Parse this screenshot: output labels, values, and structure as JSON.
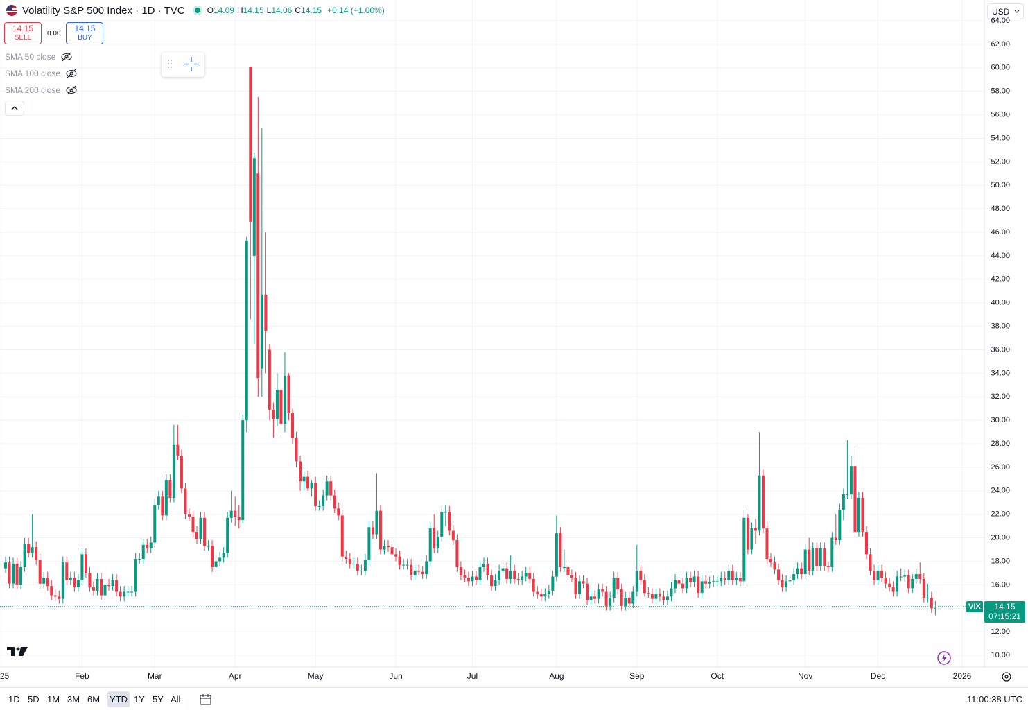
{
  "header": {
    "title": "Volatility S&P 500 Index · 1D · TVC",
    "ohlc": [
      {
        "label": "O",
        "value": "14.09"
      },
      {
        "label": "H",
        "value": "14.15"
      },
      {
        "label": "L",
        "value": "14.06"
      },
      {
        "label": "C",
        "value": "14.15"
      }
    ],
    "change": "+0.14 (+1.00%)"
  },
  "trade": {
    "sell_price": "14.15",
    "sell_label": "SELL",
    "spread": "0.00",
    "buy_price": "14.15",
    "buy_label": "BUY"
  },
  "indicators": [
    "SMA 50 close",
    "SMA 100 close",
    "SMA 200 close"
  ],
  "currency": "USD",
  "price_tag": {
    "symbol": "VIX",
    "price": "14.15",
    "countdown": "07:15:21"
  },
  "toolbar": {
    "ranges": [
      "1D",
      "5D",
      "1M",
      "3M",
      "6M",
      "YTD",
      "1Y",
      "5Y",
      "All"
    ],
    "selected": "YTD",
    "clock": "11:00:38 UTC"
  },
  "chart_data": {
    "type": "candlestick",
    "up_color": "#089981",
    "down_color": "#f23645",
    "grid": true,
    "ylim": [
      9,
      64
    ],
    "yticks": [
      {
        "value": 10,
        "label": "10.00"
      },
      {
        "value": 12,
        "label": "12.00"
      },
      {
        "value": 14,
        "label": "14.00"
      },
      {
        "value": 16,
        "label": "16.00"
      },
      {
        "value": 18,
        "label": "18.00"
      },
      {
        "value": 20,
        "label": "20.00"
      },
      {
        "value": 22,
        "label": "22.00"
      },
      {
        "value": 24,
        "label": "24.00"
      },
      {
        "value": 26,
        "label": "26.00"
      },
      {
        "value": 28,
        "label": "28.00"
      },
      {
        "value": 30,
        "label": "30.00"
      },
      {
        "value": 32,
        "label": "32.00"
      },
      {
        "value": 34,
        "label": "34.00"
      },
      {
        "value": 36,
        "label": "36.00"
      },
      {
        "value": 38,
        "label": "38.00"
      },
      {
        "value": 40,
        "label": "40.00"
      },
      {
        "value": 42,
        "label": "42.00"
      },
      {
        "value": 44,
        "label": "44.00"
      },
      {
        "value": 46,
        "label": "46.00"
      },
      {
        "value": 48,
        "label": "48.00"
      },
      {
        "value": 50,
        "label": "50.00"
      },
      {
        "value": 52,
        "label": "52.00"
      },
      {
        "value": 54,
        "label": "54.00"
      },
      {
        "value": 56,
        "label": "56.00"
      },
      {
        "value": 58,
        "label": "58.00"
      },
      {
        "value": 60,
        "label": "60.00"
      },
      {
        "value": 62,
        "label": "62.00"
      },
      {
        "value": 64,
        "label": "64.00"
      }
    ],
    "xticks": [
      {
        "value": -1.5,
        "label": "25"
      },
      {
        "value": 20,
        "label": "Feb"
      },
      {
        "value": 39,
        "label": "Mar"
      },
      {
        "value": 60,
        "label": "Apr"
      },
      {
        "value": 81,
        "label": "May"
      },
      {
        "value": 102,
        "label": "Jun"
      },
      {
        "value": 122,
        "label": "Jul"
      },
      {
        "value": 144,
        "label": "Aug"
      },
      {
        "value": 165,
        "label": "Sep"
      },
      {
        "value": 186,
        "label": "Oct"
      },
      {
        "value": 209,
        "label": "Nov"
      },
      {
        "value": 228,
        "label": "Dec"
      },
      {
        "value": 250,
        "label": "2026"
      }
    ],
    "open": [
      17.4,
      17.9,
      16.1,
      17.8,
      16.0,
      17.5,
      19.5,
      18.7,
      19.2,
      18.1,
      16.1,
      16.6,
      15.9,
      15.1,
      15.0,
      14.8,
      17.9,
      16.4,
      16.6,
      15.8,
      16.4,
      18.6,
      17.0,
      15.8,
      15.5,
      16.5,
      15.1,
      16.0,
      15.9,
      16.4,
      15.4,
      15.0,
      15.4,
      15.4,
      15.4,
      18.2,
      18.2,
      19.4,
      19.1,
      19.6,
      22.8,
      23.5,
      21.9,
      24.9,
      23.4,
      27.9,
      27.0,
      24.2,
      22.0,
      21.8,
      20.5,
      19.9,
      21.7,
      19.3,
      19.3,
      17.5,
      18.0,
      18.3,
      18.7,
      21.7,
      22.3,
      21.8,
      21.5,
      30.0,
      60.1,
      44.0,
      51.0,
      34.4,
      40.7,
      36.0,
      30.9,
      30.1,
      32.6,
      29.7,
      33.8,
      30.6,
      28.5,
      26.5,
      24.8,
      25.2,
      24.2,
      24.7,
      22.7,
      22.7,
      23.6,
      24.8,
      23.6,
      22.5,
      21.9,
      18.4,
      18.2,
      17.8,
      17.8,
      17.2,
      17.2,
      18.1,
      20.9,
      20.3,
      22.3,
      19.0,
      19.3,
      19.2,
      18.6,
      18.4,
      17.7,
      17.7,
      17.7,
      16.8,
      17.2,
      17.1,
      16.9,
      18.0,
      20.8,
      19.1,
      20.1,
      22.2,
      22.2,
      20.6,
      19.8,
      17.5,
      16.8,
      16.6,
      16.3,
      16.7,
      16.4,
      17.5,
      17.8,
      16.8,
      15.9,
      16.4,
      17.2,
      17.4,
      16.5,
      17.2,
      16.5,
      16.4,
      16.7,
      17.0,
      16.5,
      15.4,
      15.2,
      15.0,
      15.2,
      15.5,
      16.7,
      20.4,
      17.5,
      17.5,
      16.8,
      16.6,
      15.2,
      16.3,
      16.1,
      14.7,
      15.0,
      14.8,
      15.6,
      15.4,
      14.2,
      14.9,
      16.6,
      15.6,
      14.2,
      14.9,
      14.4,
      15.4,
      17.2,
      16.4,
      15.3,
      15.2,
      14.8,
      15.2,
      15.0,
      14.7,
      15.0,
      15.7,
      16.4,
      16.1,
      15.7,
      16.6,
      16.2,
      16.7,
      15.3,
      16.3,
      16.1,
      16.2,
      16.3,
      16.3,
      16.6,
      16.4,
      17.2,
      16.4,
      16.6,
      16.3,
      21.7,
      19.0,
      20.8,
      20.6,
      25.3,
      20.8,
      18.2,
      17.9,
      17.3,
      16.4,
      15.8,
      16.3,
      16.4,
      16.9,
      17.4,
      16.9,
      19.0,
      17.2,
      19.1,
      17.6,
      19.1,
      17.6,
      17.5,
      20.0,
      19.8,
      22.4,
      23.7,
      23.7,
      26.1,
      20.5,
      23.4,
      20.5,
      18.6,
      17.2,
      16.4,
      17.2,
      16.6,
      16.1,
      15.8,
      15.4,
      16.7,
      16.7,
      16.8,
      15.7,
      16.5,
      16.9,
      16.5,
      14.9,
      14.9,
      14.0,
      14.09
    ],
    "high": [
      18.4,
      18.4,
      18.3,
      18.3,
      18.0,
      20.0,
      20.0,
      22.0,
      19.7,
      18.6,
      17.1,
      17.1,
      16.4,
      15.6,
      15.5,
      18.4,
      18.4,
      17.1,
      17.1,
      16.9,
      19.1,
      19.1,
      17.5,
      16.3,
      17.0,
      17.0,
      16.5,
      16.5,
      16.9,
      16.9,
      15.9,
      15.9,
      15.9,
      15.9,
      18.7,
      18.7,
      19.9,
      19.9,
      20.1,
      23.3,
      24.0,
      24.0,
      25.4,
      25.4,
      29.6,
      29.6,
      27.5,
      24.7,
      22.5,
      22.3,
      21.0,
      22.2,
      22.2,
      19.8,
      19.8,
      18.5,
      18.8,
      19.2,
      22.2,
      24.0,
      23.5,
      22.8,
      30.5,
      45.6,
      60.1,
      52.8,
      57.5,
      54.9,
      46.0,
      36.5,
      31.5,
      34.0,
      33.2,
      35.8,
      34.0,
      31.0,
      29.0,
      27.0,
      25.7,
      25.7,
      24.9,
      25.2,
      23.2,
      24.1,
      25.3,
      25.3,
      24.1,
      23.0,
      22.4,
      18.9,
      18.7,
      18.3,
      18.3,
      17.7,
      18.6,
      21.4,
      21.4,
      25.5,
      22.8,
      19.8,
      19.8,
      19.7,
      19.1,
      18.9,
      18.2,
      18.2,
      18.2,
      17.7,
      17.7,
      17.6,
      18.5,
      21.3,
      22.0,
      20.6,
      22.7,
      22.8,
      22.7,
      21.1,
      20.3,
      18.0,
      17.3,
      17.1,
      17.2,
      17.2,
      18.0,
      18.3,
      18.3,
      17.3,
      16.9,
      17.7,
      17.9,
      17.9,
      18.5,
      17.7,
      17.0,
      17.2,
      17.5,
      17.5,
      17.0,
      15.9,
      15.7,
      15.7,
      16.0,
      17.2,
      21.9,
      20.9,
      19.0,
      18.0,
      17.3,
      17.1,
      16.8,
      16.8,
      16.6,
      15.5,
      15.5,
      16.1,
      16.1,
      15.9,
      15.4,
      17.1,
      17.1,
      16.1,
      15.4,
      15.4,
      15.9,
      19.4,
      17.7,
      16.9,
      15.8,
      15.7,
      15.7,
      15.7,
      15.5,
      15.5,
      16.2,
      16.9,
      16.9,
      16.6,
      17.1,
      17.1,
      17.2,
      17.2,
      16.8,
      16.8,
      16.7,
      16.8,
      16.8,
      17.1,
      17.1,
      17.7,
      17.7,
      17.1,
      17.1,
      22.4,
      22.0,
      21.3,
      21.6,
      28.99,
      25.8,
      21.3,
      18.7,
      18.4,
      17.8,
      16.9,
      16.8,
      16.9,
      17.4,
      17.9,
      17.9,
      19.5,
      20.0,
      19.6,
      19.6,
      19.6,
      19.6,
      18.0,
      20.5,
      22.0,
      22.9,
      24.2,
      28.3,
      27.0,
      27.8,
      23.9,
      23.9,
      21.0,
      19.1,
      17.7,
      17.7,
      17.7,
      17.1,
      16.6,
      16.3,
      17.2,
      17.4,
      17.3,
      17.3,
      16.9,
      17.4,
      17.9,
      17.0,
      16.1,
      15.4,
      14.6,
      14.15
    ],
    "low": [
      17.0,
      15.7,
      15.7,
      15.6,
      15.6,
      17.1,
      18.3,
      18.3,
      17.7,
      15.7,
      15.7,
      15.5,
      14.7,
      14.6,
      14.4,
      14.4,
      16.0,
      16.0,
      15.4,
      15.4,
      16.0,
      16.6,
      15.4,
      15.1,
      15.1,
      14.7,
      14.7,
      15.5,
      15.5,
      15.0,
      14.6,
      14.6,
      15.0,
      15.0,
      15.0,
      17.8,
      17.8,
      18.7,
      18.7,
      19.2,
      22.4,
      21.5,
      21.5,
      23.0,
      23.0,
      26.6,
      23.8,
      21.6,
      21.4,
      20.1,
      19.5,
      19.5,
      18.9,
      18.9,
      17.1,
      17.1,
      17.6,
      17.9,
      18.3,
      21.3,
      21.0,
      20.8,
      21.2,
      29.0,
      38.6,
      36.5,
      32.0,
      32.0,
      34.0,
      30.0,
      28.5,
      29.5,
      28.9,
      29.0,
      30.0,
      28.0,
      26.0,
      24.0,
      24.0,
      24.0,
      23.5,
      22.3,
      22.3,
      22.3,
      23.2,
      23.2,
      22.1,
      21.5,
      18.0,
      17.8,
      17.4,
      17.4,
      16.8,
      16.8,
      16.8,
      17.7,
      19.9,
      19.9,
      18.6,
      18.6,
      18.8,
      18.2,
      18.0,
      17.3,
      17.3,
      17.3,
      16.4,
      16.4,
      16.8,
      16.5,
      16.5,
      17.6,
      18.7,
      18.7,
      19.7,
      21.0,
      20.2,
      19.4,
      17.1,
      16.4,
      16.2,
      15.9,
      15.9,
      16.0,
      16.0,
      17.1,
      16.4,
      15.5,
      15.5,
      16.0,
      16.8,
      16.1,
      16.1,
      16.1,
      16.0,
      16.0,
      16.3,
      16.1,
      15.0,
      14.8,
      14.6,
      14.6,
      14.8,
      15.1,
      16.3,
      17.1,
      17.1,
      16.4,
      16.2,
      14.8,
      14.8,
      15.7,
      14.3,
      14.3,
      14.4,
      14.4,
      15.0,
      13.8,
      13.8,
      14.5,
      15.2,
      13.8,
      13.8,
      14.0,
      14.0,
      15.0,
      16.0,
      15.0,
      14.9,
      14.4,
      14.4,
      14.6,
      14.3,
      14.3,
      14.6,
      15.3,
      15.7,
      15.3,
      15.3,
      15.8,
      15.8,
      14.9,
      14.9,
      15.7,
      15.7,
      15.8,
      15.9,
      15.9,
      16.0,
      16.0,
      16.0,
      16.0,
      15.9,
      15.9,
      18.6,
      18.6,
      19.5,
      20.2,
      20.4,
      17.8,
      17.5,
      16.9,
      16.0,
      15.4,
      15.4,
      15.9,
      16.0,
      16.5,
      16.5,
      16.5,
      16.8,
      16.8,
      17.2,
      17.2,
      17.2,
      17.1,
      17.1,
      19.4,
      19.4,
      21.5,
      23.3,
      23.3,
      20.1,
      20.1,
      20.1,
      18.2,
      16.8,
      16.0,
      16.0,
      16.2,
      15.7,
      15.4,
      15.0,
      15.0,
      16.3,
      16.3,
      15.3,
      15.3,
      16.1,
      16.1,
      14.5,
      14.5,
      13.6,
      13.4,
      14.06
    ],
    "close": [
      17.9,
      16.1,
      17.8,
      16.0,
      17.5,
      19.5,
      18.7,
      19.2,
      18.1,
      16.1,
      16.6,
      15.9,
      15.1,
      15.0,
      14.8,
      17.9,
      16.4,
      16.6,
      15.8,
      16.4,
      18.6,
      17.0,
      15.8,
      15.5,
      16.5,
      15.1,
      16.0,
      15.9,
      16.4,
      15.4,
      15.0,
      15.4,
      15.4,
      15.4,
      18.2,
      18.2,
      19.4,
      19.1,
      19.6,
      22.8,
      23.5,
      21.9,
      24.9,
      23.4,
      27.9,
      27.0,
      24.2,
      22.0,
      21.8,
      20.5,
      19.9,
      21.7,
      19.3,
      19.3,
      17.5,
      18.0,
      18.3,
      18.7,
      21.7,
      22.3,
      21.8,
      21.5,
      30.0,
      45.3,
      46.9,
      52.3,
      33.6,
      40.7,
      37.6,
      30.9,
      30.1,
      32.6,
      29.7,
      33.8,
      30.6,
      28.5,
      26.5,
      24.8,
      25.2,
      24.2,
      24.7,
      22.7,
      22.7,
      23.6,
      24.8,
      23.6,
      22.5,
      21.9,
      18.4,
      18.2,
      17.8,
      17.8,
      17.2,
      17.2,
      18.1,
      20.9,
      20.3,
      22.3,
      19.0,
      19.3,
      19.2,
      18.6,
      18.4,
      17.7,
      17.7,
      17.7,
      16.8,
      17.2,
      17.1,
      16.9,
      18.0,
      20.8,
      19.1,
      20.1,
      22.2,
      22.2,
      20.6,
      19.8,
      17.5,
      16.8,
      16.6,
      16.3,
      16.7,
      16.4,
      17.5,
      17.8,
      16.8,
      15.9,
      16.4,
      17.2,
      17.4,
      16.5,
      17.2,
      16.5,
      16.4,
      16.7,
      17.0,
      16.5,
      15.4,
      15.2,
      15.0,
      15.2,
      15.5,
      16.7,
      20.4,
      17.5,
      17.5,
      16.8,
      16.6,
      15.2,
      16.3,
      16.1,
      14.7,
      15.0,
      14.8,
      15.6,
      15.4,
      14.2,
      14.9,
      16.6,
      15.6,
      14.2,
      14.9,
      14.4,
      15.4,
      17.2,
      16.4,
      15.3,
      15.2,
      14.8,
      15.2,
      15.0,
      14.7,
      15.0,
      15.7,
      16.4,
      16.1,
      15.7,
      16.6,
      16.2,
      16.7,
      15.3,
      16.3,
      16.1,
      16.2,
      16.3,
      16.3,
      16.6,
      16.4,
      17.2,
      16.4,
      16.6,
      16.3,
      21.7,
      19.0,
      20.8,
      20.6,
      25.3,
      20.8,
      18.2,
      17.9,
      17.3,
      16.4,
      15.8,
      16.3,
      16.4,
      16.9,
      17.4,
      16.9,
      19.0,
      17.2,
      19.1,
      17.6,
      19.1,
      17.6,
      17.5,
      20.0,
      19.8,
      22.4,
      23.7,
      23.7,
      26.1,
      20.5,
      23.4,
      20.5,
      18.6,
      17.2,
      16.4,
      17.2,
      16.6,
      16.1,
      15.8,
      15.4,
      16.7,
      16.7,
      16.8,
      15.7,
      16.5,
      16.9,
      16.5,
      14.9,
      14.9,
      14.0,
      14.0,
      14.15
    ]
  }
}
